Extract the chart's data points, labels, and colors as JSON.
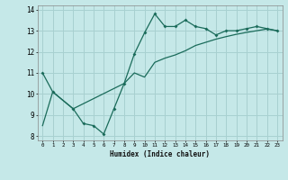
{
  "xlabel": "Humidex (Indice chaleur)",
  "bg_color": "#c5e8e8",
  "grid_color": "#a8d0d0",
  "line_color": "#1a6b5a",
  "ylim": [
    7.8,
    14.2
  ],
  "xlim": [
    -0.5,
    23.5
  ],
  "yticks": [
    8,
    9,
    10,
    11,
    12,
    13,
    14
  ],
  "xticks": [
    0,
    1,
    2,
    3,
    4,
    5,
    6,
    7,
    8,
    9,
    10,
    11,
    12,
    13,
    14,
    15,
    16,
    17,
    18,
    19,
    20,
    21,
    22,
    23
  ],
  "curve1_x": [
    0,
    1,
    3,
    4,
    5,
    6,
    7,
    8,
    9,
    10,
    11,
    12,
    13,
    14,
    15,
    16,
    17,
    18,
    19,
    20,
    21,
    22,
    23
  ],
  "curve1_y": [
    11.0,
    10.1,
    9.3,
    8.6,
    8.5,
    8.1,
    9.3,
    10.5,
    11.9,
    12.9,
    13.8,
    13.2,
    13.2,
    13.5,
    13.2,
    13.1,
    12.8,
    13.0,
    13.0,
    13.1,
    13.2,
    13.1,
    13.0
  ],
  "curve2_x": [
    0,
    1,
    3,
    8,
    9,
    10,
    11,
    12,
    13,
    14,
    15,
    16,
    17,
    18,
    19,
    20,
    21,
    22,
    23
  ],
  "curve2_y": [
    8.5,
    10.1,
    9.3,
    10.5,
    11.0,
    10.8,
    11.5,
    11.7,
    11.85,
    12.05,
    12.3,
    12.45,
    12.6,
    12.72,
    12.83,
    12.92,
    13.0,
    13.08,
    13.0
  ]
}
